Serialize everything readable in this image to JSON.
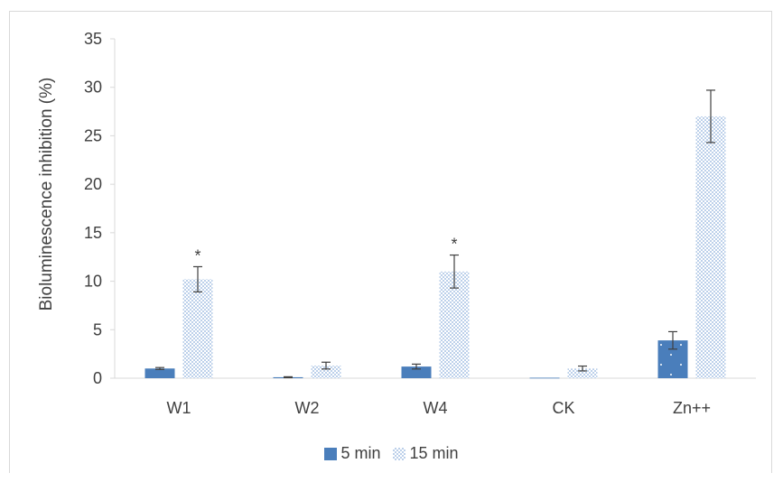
{
  "chart_data": {
    "type": "bar",
    "categories": [
      "W1",
      "W2",
      "W4",
      "CK",
      "Zn++"
    ],
    "series": [
      {
        "name": "5 min",
        "values": [
          1.0,
          0.1,
          1.2,
          0.05,
          3.9
        ],
        "errors": [
          0.1,
          0.05,
          0.25,
          0.0,
          0.9
        ],
        "color": "#4a7ebb"
      },
      {
        "name": "15 min",
        "values": [
          10.2,
          1.3,
          11.0,
          1.0,
          27.0
        ],
        "errors": [
          1.3,
          0.35,
          1.7,
          0.25,
          2.7
        ],
        "color": "#bcd0ea"
      }
    ],
    "annotations": [
      {
        "category": "W1",
        "series": "15 min",
        "text": "*"
      },
      {
        "category": "W4",
        "series": "15 min",
        "text": "*"
      }
    ],
    "ylabel": "Bioluminescence inhibition (%)",
    "xlabel": "",
    "ylim": [
      0,
      35
    ],
    "yticks": [
      0,
      5,
      10,
      15,
      20,
      25,
      30,
      35
    ],
    "grid": false,
    "legend": "bottom"
  }
}
